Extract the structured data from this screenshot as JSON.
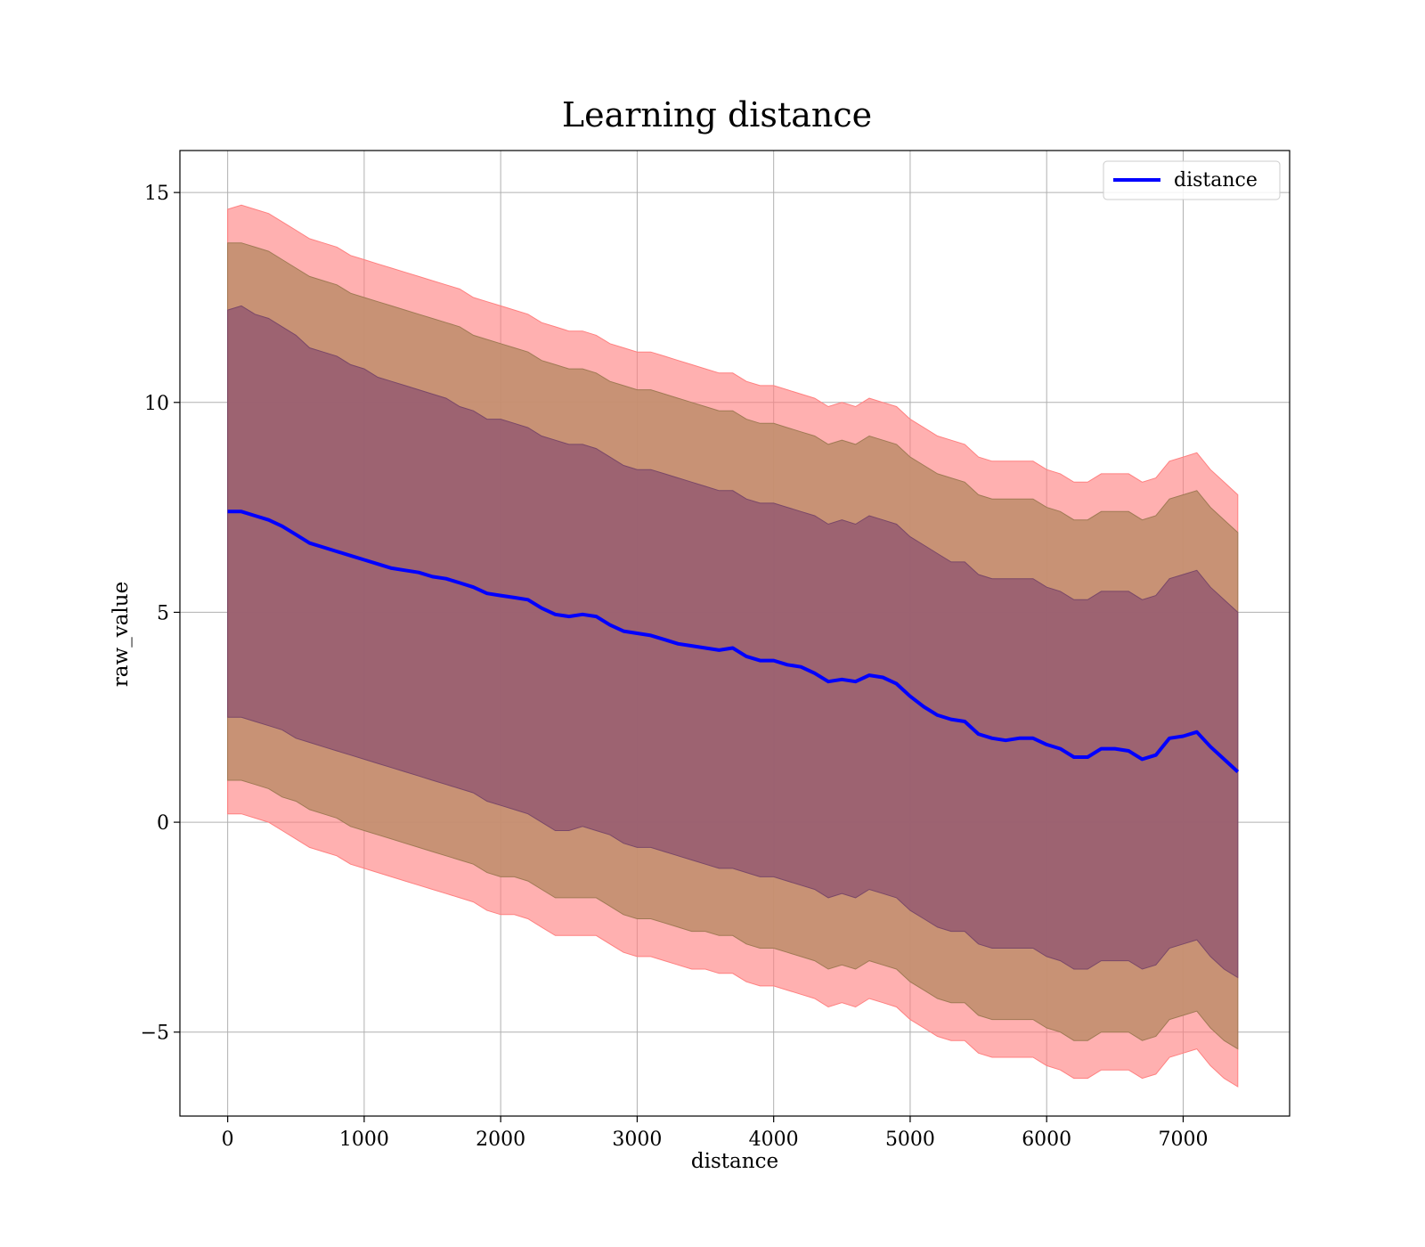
{
  "chart_data": {
    "type": "line",
    "title": "Learning distance",
    "xlabel": "distance",
    "ylabel": "raw_value",
    "xlim": [
      -350,
      7780
    ],
    "ylim": [
      -7,
      16
    ],
    "xticks": [
      0,
      1000,
      2000,
      3000,
      4000,
      5000,
      6000,
      7000
    ],
    "yticks": [
      -5,
      0,
      5,
      10,
      15
    ],
    "xtick_labels": [
      "0",
      "1000",
      "2000",
      "3000",
      "4000",
      "5000",
      "6000",
      "7000"
    ],
    "ytick_labels": [
      "−5",
      "0",
      "5",
      "10",
      "15"
    ],
    "grid": true,
    "legend_position": "top-right",
    "series": [
      {
        "name": "distance",
        "color": "#0000ff",
        "x": [
          0,
          100,
          200,
          300,
          400,
          500,
          600,
          700,
          800,
          900,
          1000,
          1100,
          1200,
          1300,
          1400,
          1500,
          1600,
          1700,
          1800,
          1900,
          2000,
          2100,
          2200,
          2300,
          2400,
          2500,
          2600,
          2700,
          2800,
          2900,
          3000,
          3100,
          3200,
          3300,
          3400,
          3500,
          3600,
          3700,
          3800,
          3900,
          4000,
          4100,
          4200,
          4300,
          4400,
          4500,
          4600,
          4700,
          4800,
          4900,
          5000,
          5100,
          5200,
          5300,
          5400,
          5500,
          5600,
          5700,
          5800,
          5900,
          6000,
          6100,
          6200,
          6300,
          6400,
          6500,
          6600,
          6700,
          6800,
          6900,
          7000,
          7100,
          7200,
          7300,
          7400
        ],
        "values": [
          7.4,
          7.4,
          7.3,
          7.2,
          7.05,
          6.85,
          6.65,
          6.55,
          6.45,
          6.35,
          6.25,
          6.15,
          6.05,
          6.0,
          5.95,
          5.85,
          5.8,
          5.7,
          5.6,
          5.45,
          5.4,
          5.35,
          5.3,
          5.1,
          4.95,
          4.9,
          4.95,
          4.9,
          4.7,
          4.55,
          4.5,
          4.45,
          4.35,
          4.25,
          4.2,
          4.15,
          4.1,
          4.15,
          3.95,
          3.85,
          3.85,
          3.75,
          3.7,
          3.55,
          3.35,
          3.4,
          3.35,
          3.5,
          3.45,
          3.3,
          3.0,
          2.75,
          2.55,
          2.45,
          2.4,
          2.1,
          2.0,
          1.95,
          2.0,
          2.0,
          1.85,
          1.75,
          1.55,
          1.55,
          1.75,
          1.75,
          1.7,
          1.5,
          1.6,
          2.0,
          2.05,
          2.15,
          1.8,
          1.5,
          1.2
        ],
        "band_1sd_upper": [
          12.2,
          12.3,
          12.1,
          12.0,
          11.8,
          11.6,
          11.3,
          11.2,
          11.1,
          10.9,
          10.8,
          10.6,
          10.5,
          10.4,
          10.3,
          10.2,
          10.1,
          9.9,
          9.8,
          9.6,
          9.6,
          9.5,
          9.4,
          9.2,
          9.1,
          9.0,
          9.0,
          8.9,
          8.7,
          8.5,
          8.4,
          8.4,
          8.3,
          8.2,
          8.1,
          8.0,
          7.9,
          7.9,
          7.7,
          7.6,
          7.6,
          7.5,
          7.4,
          7.3,
          7.1,
          7.2,
          7.1,
          7.3,
          7.2,
          7.1,
          6.8,
          6.6,
          6.4,
          6.2,
          6.2,
          5.9,
          5.8,
          5.8,
          5.8,
          5.8,
          5.6,
          5.5,
          5.3,
          5.3,
          5.5,
          5.5,
          5.5,
          5.3,
          5.4,
          5.8,
          5.9,
          6.0,
          5.6,
          5.3,
          5.0
        ],
        "band_1sd_lower": [
          2.5,
          2.5,
          2.4,
          2.3,
          2.2,
          2.0,
          1.9,
          1.8,
          1.7,
          1.6,
          1.5,
          1.4,
          1.3,
          1.2,
          1.1,
          1.0,
          0.9,
          0.8,
          0.7,
          0.5,
          0.4,
          0.3,
          0.2,
          0.0,
          -0.2,
          -0.2,
          -0.1,
          -0.2,
          -0.3,
          -0.5,
          -0.6,
          -0.6,
          -0.7,
          -0.8,
          -0.9,
          -1.0,
          -1.1,
          -1.1,
          -1.2,
          -1.3,
          -1.3,
          -1.4,
          -1.5,
          -1.6,
          -1.8,
          -1.7,
          -1.8,
          -1.6,
          -1.7,
          -1.8,
          -2.1,
          -2.3,
          -2.5,
          -2.6,
          -2.6,
          -2.9,
          -3.0,
          -3.0,
          -3.0,
          -3.0,
          -3.2,
          -3.3,
          -3.5,
          -3.5,
          -3.3,
          -3.3,
          -3.3,
          -3.5,
          -3.4,
          -3.0,
          -2.9,
          -2.8,
          -3.2,
          -3.5,
          -3.7
        ],
        "band_2sd_upper": [
          13.8,
          13.8,
          13.7,
          13.6,
          13.4,
          13.2,
          13.0,
          12.9,
          12.8,
          12.6,
          12.5,
          12.4,
          12.3,
          12.2,
          12.1,
          12.0,
          11.9,
          11.8,
          11.6,
          11.5,
          11.4,
          11.3,
          11.2,
          11.0,
          10.9,
          10.8,
          10.8,
          10.7,
          10.5,
          10.4,
          10.3,
          10.3,
          10.2,
          10.1,
          10.0,
          9.9,
          9.8,
          9.8,
          9.6,
          9.5,
          9.5,
          9.4,
          9.3,
          9.2,
          9.0,
          9.1,
          9.0,
          9.2,
          9.1,
          9.0,
          8.7,
          8.5,
          8.3,
          8.2,
          8.1,
          7.8,
          7.7,
          7.7,
          7.7,
          7.7,
          7.5,
          7.4,
          7.2,
          7.2,
          7.4,
          7.4,
          7.4,
          7.2,
          7.3,
          7.7,
          7.8,
          7.9,
          7.5,
          7.2,
          6.9
        ],
        "band_2sd_lower": [
          1.0,
          1.0,
          0.9,
          0.8,
          0.6,
          0.5,
          0.3,
          0.2,
          0.1,
          -0.1,
          -0.2,
          -0.3,
          -0.4,
          -0.5,
          -0.6,
          -0.7,
          -0.8,
          -0.9,
          -1.0,
          -1.2,
          -1.3,
          -1.3,
          -1.4,
          -1.6,
          -1.8,
          -1.8,
          -1.8,
          -1.8,
          -2.0,
          -2.2,
          -2.3,
          -2.3,
          -2.4,
          -2.5,
          -2.6,
          -2.6,
          -2.7,
          -2.7,
          -2.9,
          -3.0,
          -3.0,
          -3.1,
          -3.2,
          -3.3,
          -3.5,
          -3.4,
          -3.5,
          -3.3,
          -3.4,
          -3.5,
          -3.8,
          -4.0,
          -4.2,
          -4.3,
          -4.3,
          -4.6,
          -4.7,
          -4.7,
          -4.7,
          -4.7,
          -4.9,
          -5.0,
          -5.2,
          -5.2,
          -5.0,
          -5.0,
          -5.0,
          -5.2,
          -5.1,
          -4.7,
          -4.6,
          -4.5,
          -4.9,
          -5.2,
          -5.4
        ],
        "band_3sd_upper": [
          14.6,
          14.7,
          14.6,
          14.5,
          14.3,
          14.1,
          13.9,
          13.8,
          13.7,
          13.5,
          13.4,
          13.3,
          13.2,
          13.1,
          13.0,
          12.9,
          12.8,
          12.7,
          12.5,
          12.4,
          12.3,
          12.2,
          12.1,
          11.9,
          11.8,
          11.7,
          11.7,
          11.6,
          11.4,
          11.3,
          11.2,
          11.2,
          11.1,
          11.0,
          10.9,
          10.8,
          10.7,
          10.7,
          10.5,
          10.4,
          10.4,
          10.3,
          10.2,
          10.1,
          9.9,
          10.0,
          9.9,
          10.1,
          10.0,
          9.9,
          9.6,
          9.4,
          9.2,
          9.1,
          9.0,
          8.7,
          8.6,
          8.6,
          8.6,
          8.6,
          8.4,
          8.3,
          8.1,
          8.1,
          8.3,
          8.3,
          8.3,
          8.1,
          8.2,
          8.6,
          8.7,
          8.8,
          8.4,
          8.1,
          7.8
        ],
        "band_3sd_lower": [
          0.2,
          0.2,
          0.1,
          0.0,
          -0.2,
          -0.4,
          -0.6,
          -0.7,
          -0.8,
          -1.0,
          -1.1,
          -1.2,
          -1.3,
          -1.4,
          -1.5,
          -1.6,
          -1.7,
          -1.8,
          -1.9,
          -2.1,
          -2.2,
          -2.2,
          -2.3,
          -2.5,
          -2.7,
          -2.7,
          -2.7,
          -2.7,
          -2.9,
          -3.1,
          -3.2,
          -3.2,
          -3.3,
          -3.4,
          -3.5,
          -3.5,
          -3.6,
          -3.6,
          -3.8,
          -3.9,
          -3.9,
          -4.0,
          -4.1,
          -4.2,
          -4.4,
          -4.3,
          -4.4,
          -4.2,
          -4.3,
          -4.4,
          -4.7,
          -4.9,
          -5.1,
          -5.2,
          -5.2,
          -5.5,
          -5.6,
          -5.6,
          -5.6,
          -5.6,
          -5.8,
          -5.9,
          -6.1,
          -6.1,
          -5.9,
          -5.9,
          -5.9,
          -6.1,
          -6.0,
          -5.6,
          -5.5,
          -5.4,
          -5.8,
          -6.1,
          -6.3
        ]
      }
    ],
    "band_colors": {
      "band_3sd": "#ff8080",
      "band_2sd": "#c28f6f",
      "band_1sd": "#8c5070"
    }
  }
}
